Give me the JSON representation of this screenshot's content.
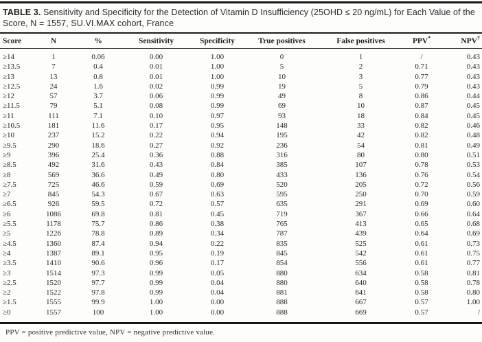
{
  "caption": {
    "label": "TABLE 3.",
    "text": "Sensitivity and Specificity for the Detection of Vitamin D Insufficiency (25OHD ≤ 20 ng/mL) for Each Value of the Score, N = 1557, SU.VI.MAX cohort, France"
  },
  "table": {
    "columns": [
      {
        "label": "Score",
        "sup": ""
      },
      {
        "label": "N",
        "sup": ""
      },
      {
        "label": "%",
        "sup": ""
      },
      {
        "label": "Sensitivity",
        "sup": ""
      },
      {
        "label": "Specificity",
        "sup": ""
      },
      {
        "label": "True positives",
        "sup": ""
      },
      {
        "label": "False positives",
        "sup": ""
      },
      {
        "label": "PPV",
        "sup": "*"
      },
      {
        "label": "NPV",
        "sup": "†"
      }
    ],
    "rows": [
      [
        "≥14",
        "1",
        "0.06",
        "0.00",
        "1.00",
        "0",
        "1",
        "/",
        "0.43"
      ],
      [
        "≥13.5",
        "7",
        "0.4",
        "0.01",
        "1.00",
        "5",
        "2",
        "0.71",
        "0.43"
      ],
      [
        "≥13",
        "13",
        "0.8",
        "0.01",
        "1.00",
        "10",
        "3",
        "0.77",
        "0.43"
      ],
      [
        "≥12.5",
        "24",
        "1.6",
        "0.02",
        "0.99",
        "19",
        "5",
        "0.79",
        "0.43"
      ],
      [
        "≥12",
        "57",
        "3.7",
        "0.06",
        "0.99",
        "49",
        "8",
        "0.86",
        "0.44"
      ],
      [
        "≥11.5",
        "79",
        "5.1",
        "0.08",
        "0.99",
        "69",
        "10",
        "0.87",
        "0.45"
      ],
      [
        "≥11",
        "111",
        "7.1",
        "0.10",
        "0.97",
        "93",
        "18",
        "0.84",
        "0.45"
      ],
      [
        "≥10.5",
        "181",
        "11.6",
        "0.17",
        "0.95",
        "148",
        "33",
        "0.82",
        "0.46"
      ],
      [
        "≥10",
        "237",
        "15.2",
        "0.22",
        "0.94",
        "195",
        "42",
        "0.82",
        "0.48"
      ],
      [
        "≥9.5",
        "290",
        "18.6",
        "0.27",
        "0.92",
        "236",
        "54",
        "0.81",
        "0.49"
      ],
      [
        "≥9",
        "396",
        "25.4",
        "0.36",
        "0.88",
        "316",
        "80",
        "0.80",
        "0.51"
      ],
      [
        "≥8.5",
        "492",
        "31.6",
        "0.43",
        "0.84",
        "385",
        "107",
        "0.78",
        "0.53"
      ],
      [
        "≥8",
        "569",
        "36.6",
        "0.49",
        "0.80",
        "433",
        "136",
        "0.76",
        "0.54"
      ],
      [
        "≥7.5",
        "725",
        "46.6",
        "0.59",
        "0.69",
        "520",
        "205",
        "0.72",
        "0.56"
      ],
      [
        "≥7",
        "845",
        "54.3",
        "0.67",
        "0.63",
        "595",
        "250",
        "0.70",
        "0.59"
      ],
      [
        "≥6.5",
        "926",
        "59.5",
        "0.72",
        "0.57",
        "635",
        "291",
        "0.69",
        "0.60"
      ],
      [
        "≥6",
        "1086",
        "69.8",
        "0.81",
        "0.45",
        "719",
        "367",
        "0.66",
        "0.64"
      ],
      [
        "≥5.5",
        "1178",
        "75.7",
        "0.86",
        "0.38",
        "765",
        "413",
        "0.65",
        "0.68"
      ],
      [
        "≥5",
        "1226",
        "78.8",
        "0.89",
        "0.34",
        "787",
        "439",
        "0.64",
        "0.69"
      ],
      [
        "≥4.5",
        "1360",
        "87.4",
        "0.94",
        "0.22",
        "835",
        "525",
        "0.61",
        "0.73"
      ],
      [
        "≥4",
        "1387",
        "89.1",
        "0.95",
        "0.19",
        "845",
        "542",
        "0.61",
        "0.75"
      ],
      [
        "≥3.5",
        "1410",
        "90.6",
        "0.96",
        "0.17",
        "854",
        "556",
        "0.61",
        "0.77"
      ],
      [
        "≥3",
        "1514",
        "97.3",
        "0.99",
        "0.05",
        "880",
        "634",
        "0.58",
        "0.81"
      ],
      [
        "≥2.5",
        "1520",
        "97.7",
        "0.99",
        "0.04",
        "880",
        "640",
        "0.58",
        "0.78"
      ],
      [
        "≥2",
        "1522",
        "97.8",
        "0.99",
        "0.04",
        "881",
        "641",
        "0.58",
        "0.80"
      ],
      [
        "≥1.5",
        "1555",
        "99.9",
        "1.00",
        "0.00",
        "888",
        "667",
        "0.57",
        "1.00"
      ],
      [
        "≥0",
        "1557",
        "100",
        "1.00",
        "0.00",
        "888",
        "669",
        "0.57",
        "/"
      ]
    ]
  },
  "footnote": "PPV = positive predictive value, NPV = negative predictive value.",
  "colors": {
    "text": "#242424",
    "rule": "#161616",
    "background": "#fdfdfc"
  }
}
